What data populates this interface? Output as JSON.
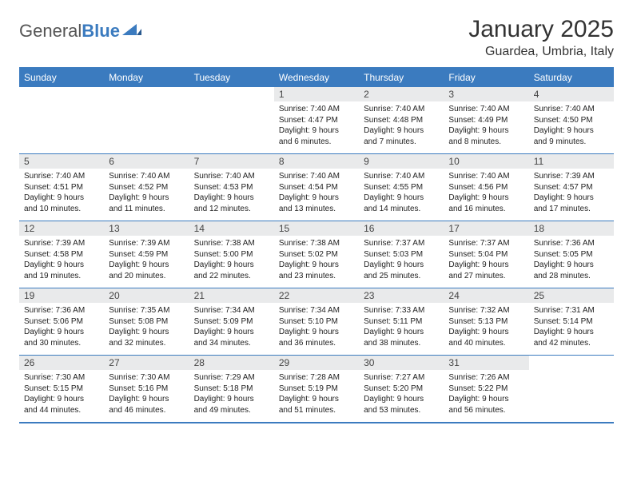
{
  "logo": {
    "text1": "General",
    "text2": "Blue"
  },
  "title": "January 2025",
  "location": "Guardea, Umbria, Italy",
  "colors": {
    "header_bg": "#3b7bbf",
    "header_text": "#ffffff",
    "daynum_bg": "#e9eaeb",
    "border": "#3b7bbf",
    "page_bg": "#ffffff",
    "text": "#222222"
  },
  "weekdays": [
    "Sunday",
    "Monday",
    "Tuesday",
    "Wednesday",
    "Thursday",
    "Friday",
    "Saturday"
  ],
  "weeks": [
    [
      null,
      null,
      null,
      {
        "n": "1",
        "sr": "7:40 AM",
        "ss": "4:47 PM",
        "dl": "9 hours and 6 minutes."
      },
      {
        "n": "2",
        "sr": "7:40 AM",
        "ss": "4:48 PM",
        "dl": "9 hours and 7 minutes."
      },
      {
        "n": "3",
        "sr": "7:40 AM",
        "ss": "4:49 PM",
        "dl": "9 hours and 8 minutes."
      },
      {
        "n": "4",
        "sr": "7:40 AM",
        "ss": "4:50 PM",
        "dl": "9 hours and 9 minutes."
      }
    ],
    [
      {
        "n": "5",
        "sr": "7:40 AM",
        "ss": "4:51 PM",
        "dl": "9 hours and 10 minutes."
      },
      {
        "n": "6",
        "sr": "7:40 AM",
        "ss": "4:52 PM",
        "dl": "9 hours and 11 minutes."
      },
      {
        "n": "7",
        "sr": "7:40 AM",
        "ss": "4:53 PM",
        "dl": "9 hours and 12 minutes."
      },
      {
        "n": "8",
        "sr": "7:40 AM",
        "ss": "4:54 PM",
        "dl": "9 hours and 13 minutes."
      },
      {
        "n": "9",
        "sr": "7:40 AM",
        "ss": "4:55 PM",
        "dl": "9 hours and 14 minutes."
      },
      {
        "n": "10",
        "sr": "7:40 AM",
        "ss": "4:56 PM",
        "dl": "9 hours and 16 minutes."
      },
      {
        "n": "11",
        "sr": "7:39 AM",
        "ss": "4:57 PM",
        "dl": "9 hours and 17 minutes."
      }
    ],
    [
      {
        "n": "12",
        "sr": "7:39 AM",
        "ss": "4:58 PM",
        "dl": "9 hours and 19 minutes."
      },
      {
        "n": "13",
        "sr": "7:39 AM",
        "ss": "4:59 PM",
        "dl": "9 hours and 20 minutes."
      },
      {
        "n": "14",
        "sr": "7:38 AM",
        "ss": "5:00 PM",
        "dl": "9 hours and 22 minutes."
      },
      {
        "n": "15",
        "sr": "7:38 AM",
        "ss": "5:02 PM",
        "dl": "9 hours and 23 minutes."
      },
      {
        "n": "16",
        "sr": "7:37 AM",
        "ss": "5:03 PM",
        "dl": "9 hours and 25 minutes."
      },
      {
        "n": "17",
        "sr": "7:37 AM",
        "ss": "5:04 PM",
        "dl": "9 hours and 27 minutes."
      },
      {
        "n": "18",
        "sr": "7:36 AM",
        "ss": "5:05 PM",
        "dl": "9 hours and 28 minutes."
      }
    ],
    [
      {
        "n": "19",
        "sr": "7:36 AM",
        "ss": "5:06 PM",
        "dl": "9 hours and 30 minutes."
      },
      {
        "n": "20",
        "sr": "7:35 AM",
        "ss": "5:08 PM",
        "dl": "9 hours and 32 minutes."
      },
      {
        "n": "21",
        "sr": "7:34 AM",
        "ss": "5:09 PM",
        "dl": "9 hours and 34 minutes."
      },
      {
        "n": "22",
        "sr": "7:34 AM",
        "ss": "5:10 PM",
        "dl": "9 hours and 36 minutes."
      },
      {
        "n": "23",
        "sr": "7:33 AM",
        "ss": "5:11 PM",
        "dl": "9 hours and 38 minutes."
      },
      {
        "n": "24",
        "sr": "7:32 AM",
        "ss": "5:13 PM",
        "dl": "9 hours and 40 minutes."
      },
      {
        "n": "25",
        "sr": "7:31 AM",
        "ss": "5:14 PM",
        "dl": "9 hours and 42 minutes."
      }
    ],
    [
      {
        "n": "26",
        "sr": "7:30 AM",
        "ss": "5:15 PM",
        "dl": "9 hours and 44 minutes."
      },
      {
        "n": "27",
        "sr": "7:30 AM",
        "ss": "5:16 PM",
        "dl": "9 hours and 46 minutes."
      },
      {
        "n": "28",
        "sr": "7:29 AM",
        "ss": "5:18 PM",
        "dl": "9 hours and 49 minutes."
      },
      {
        "n": "29",
        "sr": "7:28 AM",
        "ss": "5:19 PM",
        "dl": "9 hours and 51 minutes."
      },
      {
        "n": "30",
        "sr": "7:27 AM",
        "ss": "5:20 PM",
        "dl": "9 hours and 53 minutes."
      },
      {
        "n": "31",
        "sr": "7:26 AM",
        "ss": "5:22 PM",
        "dl": "9 hours and 56 minutes."
      },
      null
    ]
  ],
  "labels": {
    "sunrise": "Sunrise:",
    "sunset": "Sunset:",
    "daylight": "Daylight:"
  }
}
